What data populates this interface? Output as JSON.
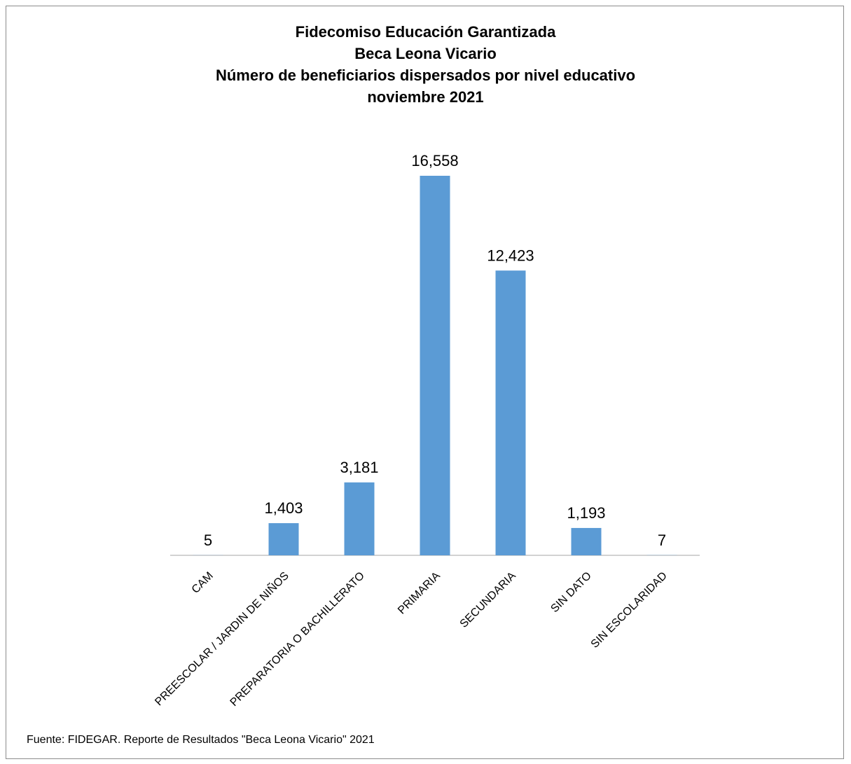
{
  "chart_data": {
    "type": "bar",
    "title_lines": [
      "Fidecomiso Educación Garantizada",
      "Beca Leona Vicario",
      "Número de beneficiarios dispersados por nivel educativo",
      "noviembre 2021"
    ],
    "categories": [
      "CAM",
      "PREESCOLAR / JARDIN DE NIÑOS",
      "PREPARATORIA O BACHILLERATO",
      "PRIMARIA",
      "SECUNDARIA",
      "SIN DATO",
      "SIN ESCOLARIDAD"
    ],
    "values": [
      5,
      1403,
      3181,
      16558,
      12423,
      1193,
      7
    ],
    "data_labels": [
      "5",
      "1,403",
      "3,181",
      "16,558",
      "12,423",
      "1,193",
      "7"
    ],
    "xlabel": "",
    "ylabel": "",
    "ylim": [
      0,
      16558
    ],
    "bar_color": "#5b9bd5",
    "grid": false,
    "legend": "none"
  },
  "source_note": "Fuente: FIDEGAR. Reporte de Resultados \"Beca Leona Vicario\" 2021"
}
